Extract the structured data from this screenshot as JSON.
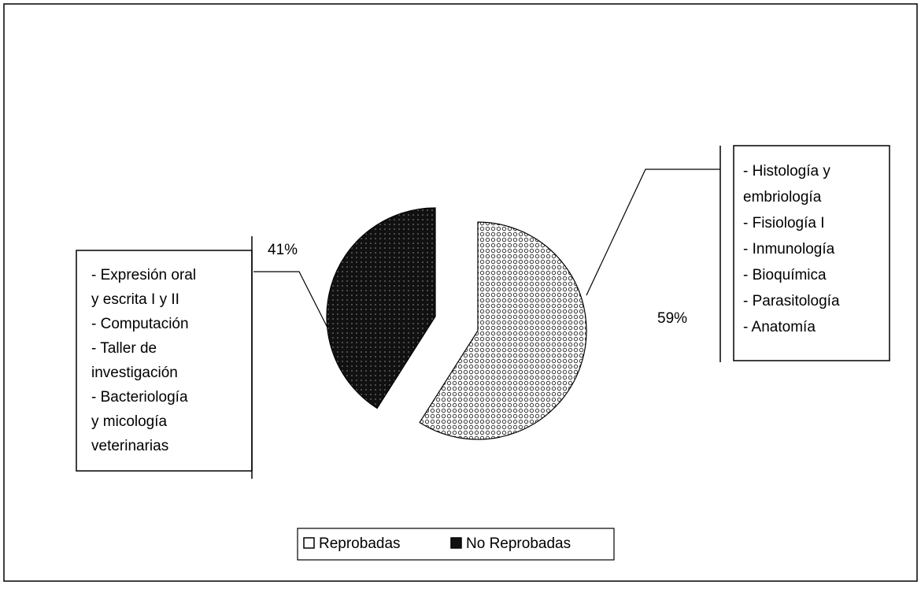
{
  "chart_data": {
    "type": "pie",
    "categories": [
      "Reprobadas",
      "No Reprobadas"
    ],
    "values": [
      59,
      41
    ],
    "value_labels": [
      "59%",
      "41%"
    ],
    "colors": [
      "#e8e8e8",
      "#1a1a1a"
    ],
    "annotations": [
      [
        "- Histología y",
        "embriología",
        "- Fisiología I",
        "- Inmunología",
        "- Bioquímica",
        "- Parasitología",
        "- Anatomía"
      ],
      [
        "- Expresión oral",
        "y escrita I y II",
        "- Computación",
        "- Taller de",
        "investigación",
        "- Bacteriología",
        "y micología",
        "veterinarias"
      ]
    ]
  }
}
